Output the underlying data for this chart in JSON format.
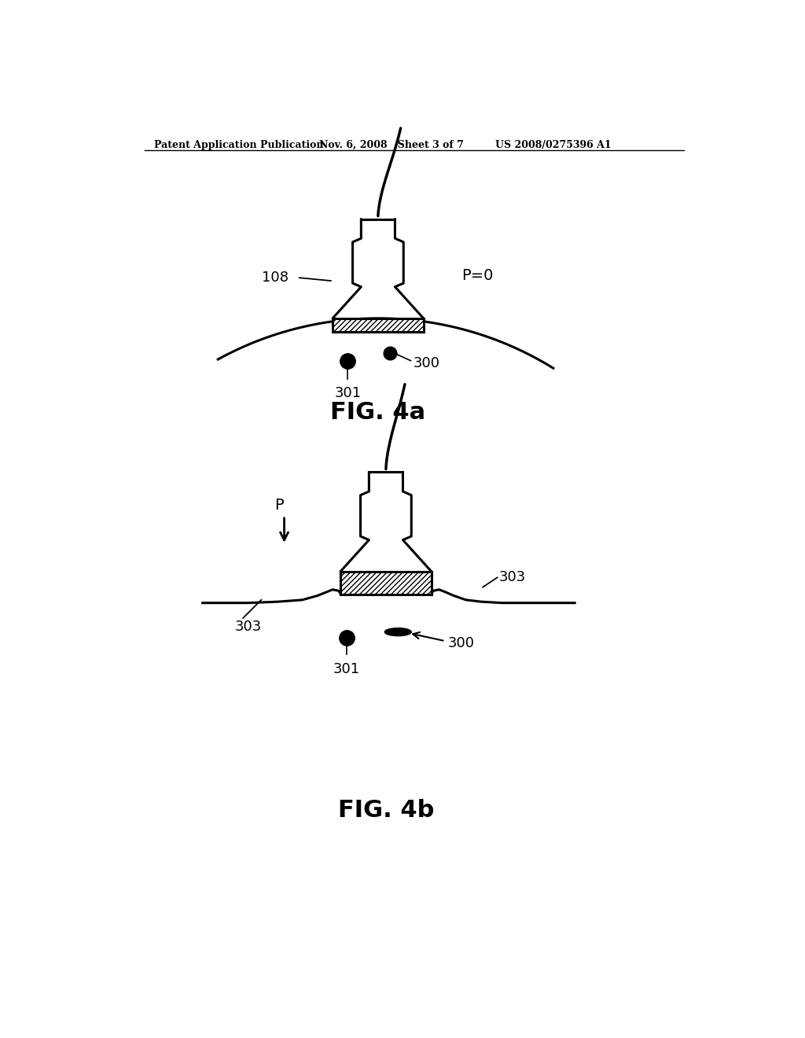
{
  "bg_color": "#ffffff",
  "line_color": "#000000",
  "header_left": "Patent Application Publication",
  "header_mid": "Nov. 6, 2008   Sheet 3 of 7",
  "header_right": "US 2008/0275396 A1",
  "fig4a_label": "FIG. 4a",
  "fig4b_label": "FIG. 4b",
  "label_108": "108",
  "label_300": "300",
  "label_301": "301",
  "label_303": "303",
  "label_P0": "P=0",
  "label_P": "P"
}
